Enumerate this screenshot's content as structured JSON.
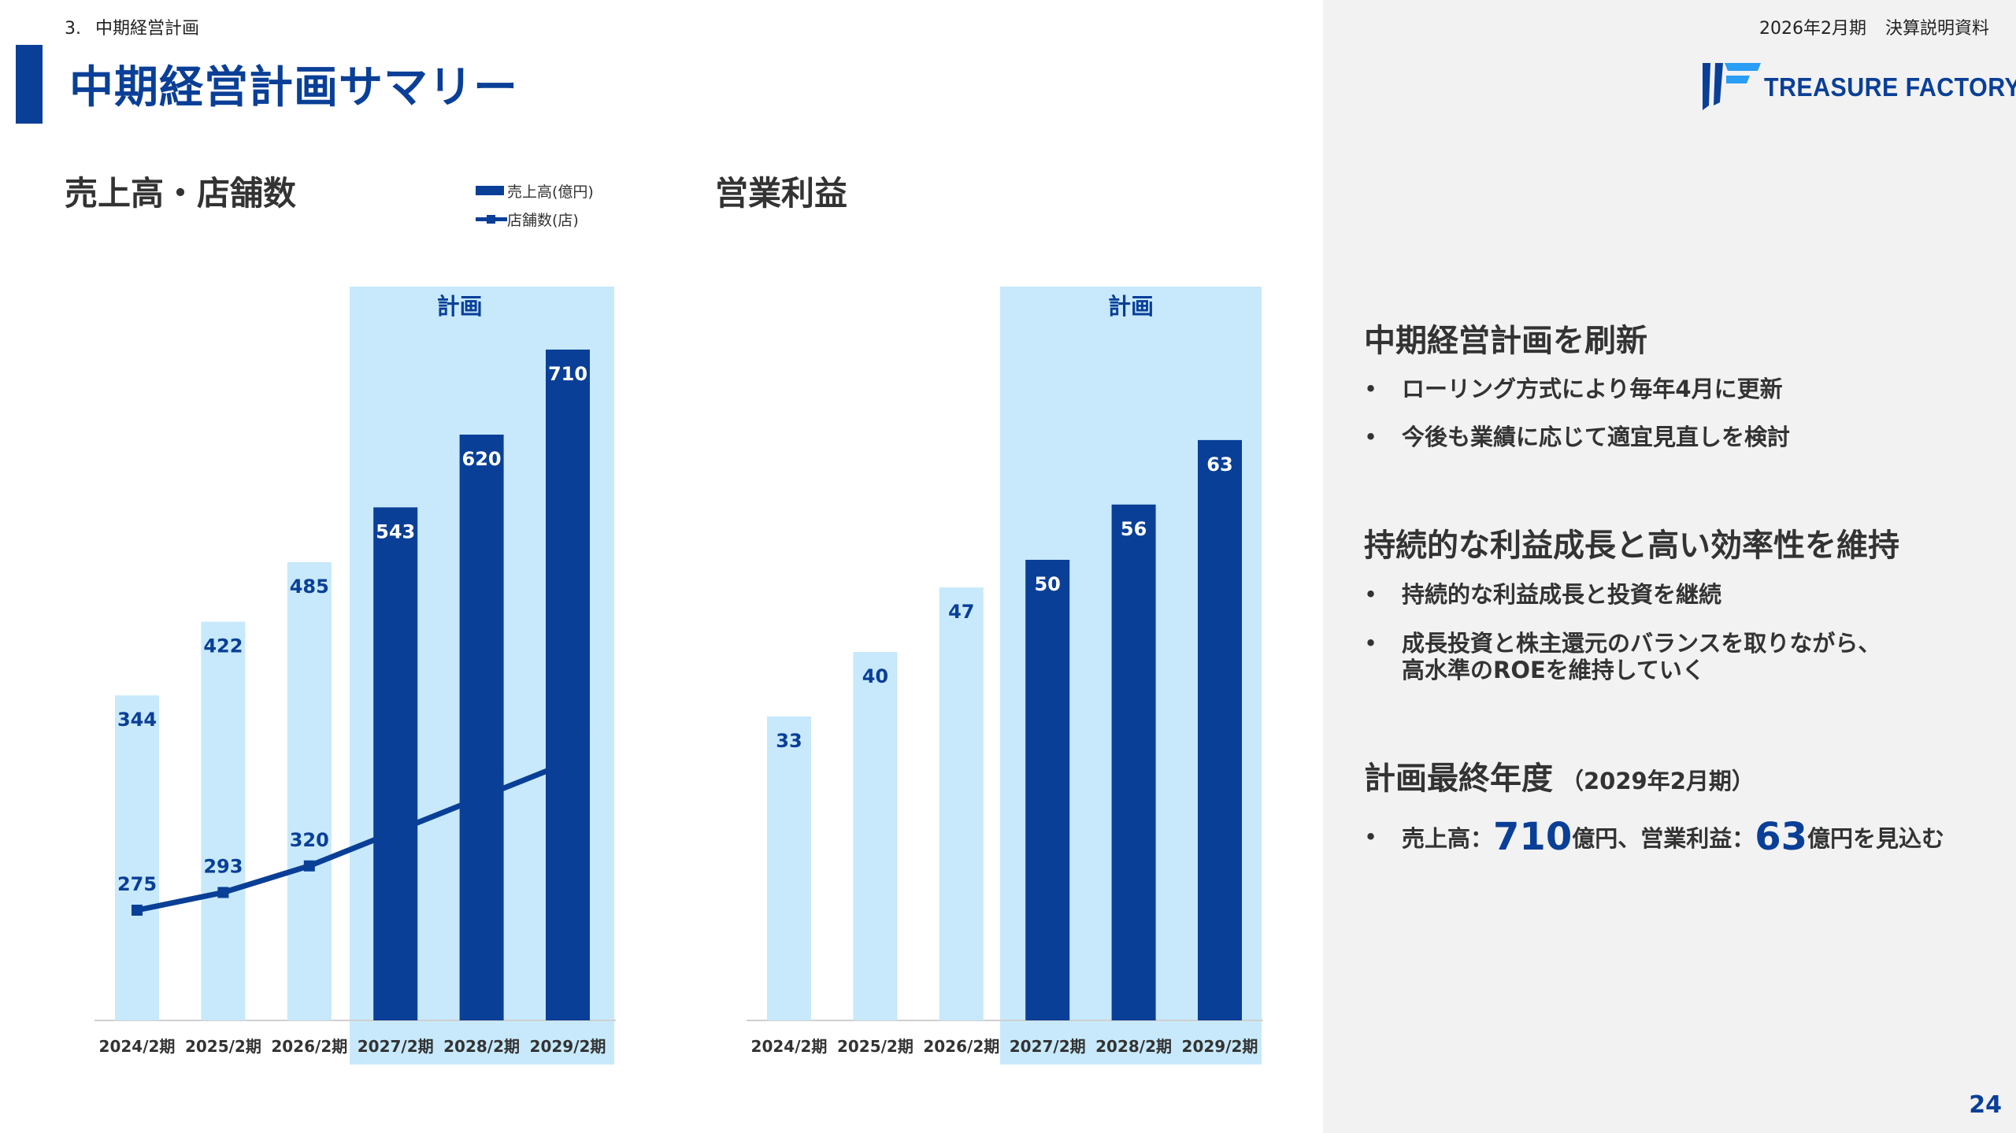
{
  "header": {
    "section_number": "3.",
    "section_title": "中期経営計画",
    "doc_period": "2026年2月期",
    "doc_title": "決算説明資料",
    "page_title": "中期経営計画サマリー",
    "logo_text": "TREASURE FACTORY",
    "page_number": "24"
  },
  "colors": {
    "brand_blue": "#0a3f97",
    "light_bar": "#c7e9fb",
    "plan_band": "#c7e9fb",
    "right_panel_bg": "#f2f2f3"
  },
  "chart_data": [
    {
      "type": "bar",
      "title": "売上高・店舗数",
      "categories": [
        "2024/2期",
        "2025/2期",
        "2026/2期",
        "2027/2期",
        "2028/2期",
        "2029/2期"
      ],
      "series": [
        {
          "name": "売上高(億円)",
          "type": "bar",
          "values": [
            344,
            422,
            485,
            543,
            620,
            710
          ]
        },
        {
          "name": "店舗数(店)",
          "type": "line",
          "values": [
            275,
            293,
            320,
            355,
            390,
            425
          ]
        }
      ],
      "plan_label": "計画",
      "plan_start_index": 3,
      "legend": "top-right",
      "grid": false
    },
    {
      "type": "bar",
      "title": "営業利益",
      "categories": [
        "2024/2期",
        "2025/2期",
        "2026/2期",
        "2027/2期",
        "2028/2期",
        "2029/2期"
      ],
      "series": [
        {
          "name": "",
          "type": "bar",
          "values": [
            33,
            40,
            47,
            50,
            56,
            63
          ]
        }
      ],
      "plan_label": "計画",
      "plan_start_index": 3,
      "grid": false
    }
  ],
  "panel": {
    "sections": [
      {
        "heading": "中期経営計画を刷新",
        "bullets": [
          "ローリング方式により毎年4月に更新",
          "今後も業績に応じて適宜見直しを検討"
        ]
      },
      {
        "heading": "持続的な利益成長と高い効率性を維持",
        "bullets": [
          "持続的な利益成長と投資を継続",
          "成長投資と株主還元のバランスを取りながら、",
          "高水準のROEを維持していく"
        ]
      },
      {
        "heading": "計画最終年度",
        "heading_sub": "（2029年2月期）",
        "target": {
          "sales_label": "売上高：",
          "sales_value": "710",
          "sales_unit": "億円、営業利益：",
          "op_value": "63",
          "op_unit": "億円を見込む"
        }
      }
    ],
    "bullet_char": "•"
  }
}
